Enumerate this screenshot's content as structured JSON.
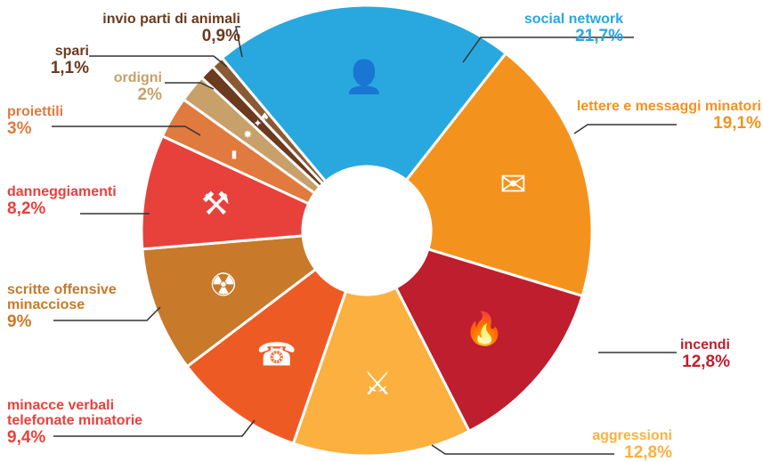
{
  "chart_data": {
    "type": "pie",
    "style": "donut",
    "title": "",
    "slices": [
      {
        "name": "social network",
        "value": 21.7,
        "value_label": "21,7%",
        "color": "#29a8df",
        "icon": "person-silhouette-icon"
      },
      {
        "name": "lettere e messaggi minatori",
        "value": 19.1,
        "value_label": "19,1%",
        "color": "#f4921e",
        "icon": "envelope-icon"
      },
      {
        "name": "incendi",
        "value": 12.8,
        "value_label": "12,8%",
        "color": "#be1e2d",
        "icon": "fire-icon"
      },
      {
        "name": "aggressioni",
        "value": 12.8,
        "value_label": "12,8%",
        "color": "#fbb040",
        "icon": "assault-icon"
      },
      {
        "name": "minacce verbali telefonate minatorie",
        "name_lines": [
          "minacce verbali",
          "telefonate minatorie"
        ],
        "value": 9.4,
        "value_label": "9,4%",
        "color": "#ee5a24",
        "icon": "phone-icon"
      },
      {
        "name": "scritte offensive minacciose",
        "name_lines": [
          "scritte offensive",
          "minacciose"
        ],
        "value": 9,
        "value_label": "9%",
        "color": "#c8792a",
        "icon": "spray-can-icon"
      },
      {
        "name": "danneggiamenti",
        "value": 8.2,
        "value_label": "8,2%",
        "color": "#e8413c",
        "icon": "hammer-icon"
      },
      {
        "name": "proiettili",
        "value": 3,
        "value_label": "3%",
        "color": "#e07a3f",
        "icon": "bullet-icon"
      },
      {
        "name": "ordigni",
        "value": 2,
        "value_label": "2%",
        "color": "#c7a06a",
        "icon": "explosive-icon"
      },
      {
        "name": "spari",
        "value": 1.1,
        "value_label": "1,1%",
        "color": "#6b3a1f",
        "icon": "gun-icon"
      },
      {
        "name": "invio parti di animali",
        "value": 0.9,
        "value_label": "0,9%",
        "color": "#8a5a35",
        "icon": "animal-icon"
      }
    ]
  }
}
